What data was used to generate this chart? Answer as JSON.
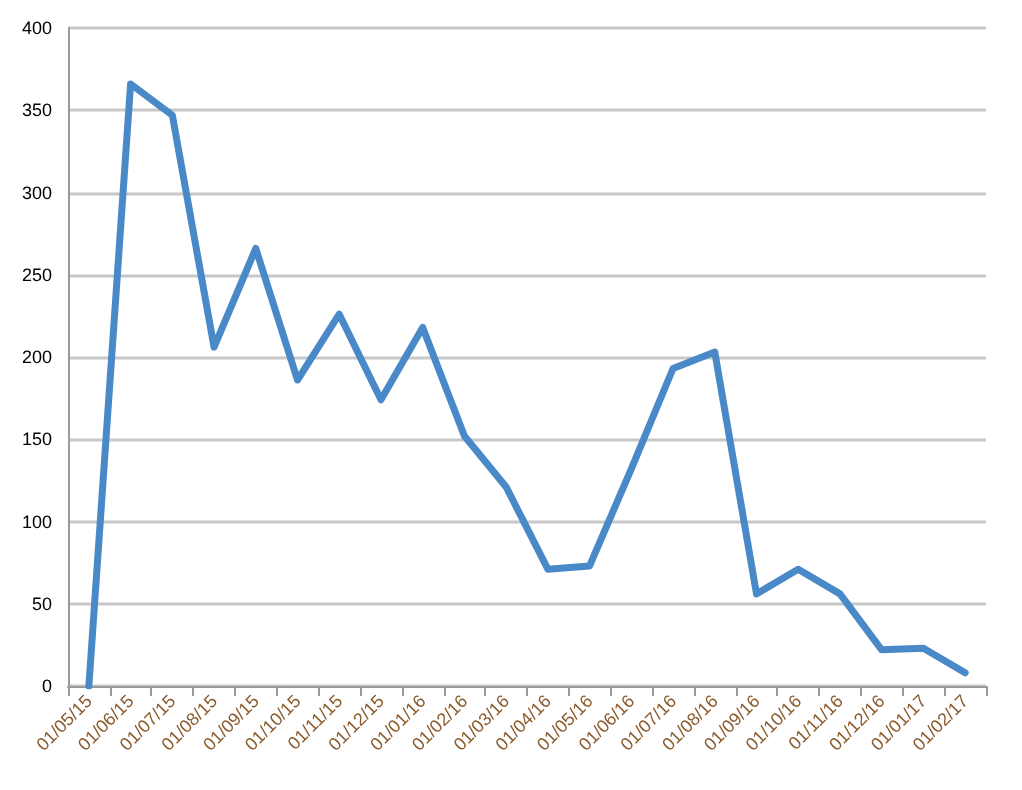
{
  "chart_data": {
    "type": "line",
    "categories": [
      "01/05/15",
      "01/06/15",
      "01/07/15",
      "01/08/15",
      "01/09/15",
      "01/10/15",
      "01/11/15",
      "01/12/15",
      "01/01/16",
      "01/02/16",
      "01/03/16",
      "01/04/16",
      "01/05/16",
      "01/06/16",
      "01/07/16",
      "01/08/16",
      "01/09/16",
      "01/10/16",
      "01/11/16",
      "01/12/16",
      "01/01/17",
      "01/02/17"
    ],
    "series": [
      {
        "color": "#4a89c8",
        "values": [
          0,
          366,
          347,
          206,
          266,
          186,
          226,
          174,
          218,
          152,
          121,
          71,
          73,
          132,
          193,
          203,
          56,
          71,
          56,
          22,
          23,
          8
        ]
      }
    ],
    "ylim": [
      0,
      400
    ],
    "yticks": [
      0,
      50,
      100,
      150,
      200,
      250,
      300,
      350,
      400
    ],
    "grid": "y",
    "marker": "none",
    "line_style": "solid"
  }
}
